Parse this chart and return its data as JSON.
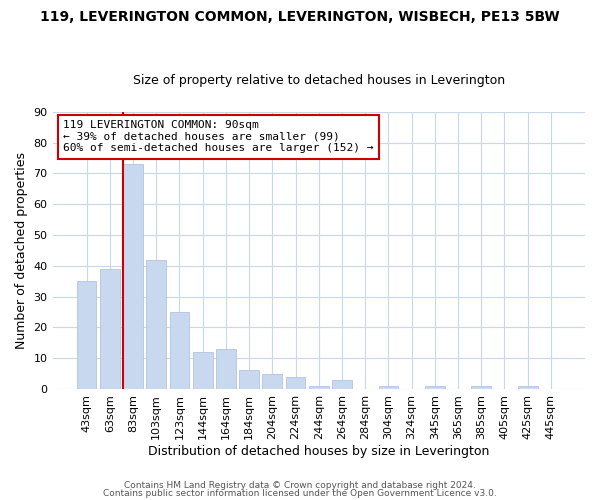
{
  "title": "119, LEVERINGTON COMMON, LEVERINGTON, WISBECH, PE13 5BW",
  "subtitle": "Size of property relative to detached houses in Leverington",
  "xlabel": "Distribution of detached houses by size in Leverington",
  "ylabel": "Number of detached properties",
  "bar_categories": [
    "43sqm",
    "63sqm",
    "83sqm",
    "103sqm",
    "123sqm",
    "144sqm",
    "164sqm",
    "184sqm",
    "204sqm",
    "224sqm",
    "244sqm",
    "264sqm",
    "284sqm",
    "304sqm",
    "324sqm",
    "345sqm",
    "365sqm",
    "385sqm",
    "405sqm",
    "425sqm",
    "445sqm"
  ],
  "bar_values": [
    35,
    39,
    73,
    42,
    25,
    12,
    13,
    6,
    5,
    4,
    1,
    3,
    0,
    1,
    0,
    1,
    0,
    1,
    0,
    1,
    0
  ],
  "bar_face_color": "#c8d8ee",
  "bar_edge_color": "#aabbdd",
  "marker_line_color": "#cc0000",
  "marker_bar_index": 2,
  "ylim": [
    0,
    90
  ],
  "yticks": [
    0,
    10,
    20,
    30,
    40,
    50,
    60,
    70,
    80,
    90
  ],
  "annotation_text": "119 LEVERINGTON COMMON: 90sqm\n← 39% of detached houses are smaller (99)\n60% of semi-detached houses are larger (152) →",
  "annotation_box_color": "#ffffff",
  "annotation_box_edgecolor": "#cc0000",
  "footer_line1": "Contains HM Land Registry data © Crown copyright and database right 2024.",
  "footer_line2": "Contains public sector information licensed under the Open Government Licence v3.0.",
  "background_color": "#ffffff",
  "grid_color": "#c8d8e8",
  "title_fontsize": 10,
  "subtitle_fontsize": 9,
  "tick_fontsize": 8,
  "label_fontsize": 9,
  "annotation_fontsize": 8,
  "footer_fontsize": 6.5
}
